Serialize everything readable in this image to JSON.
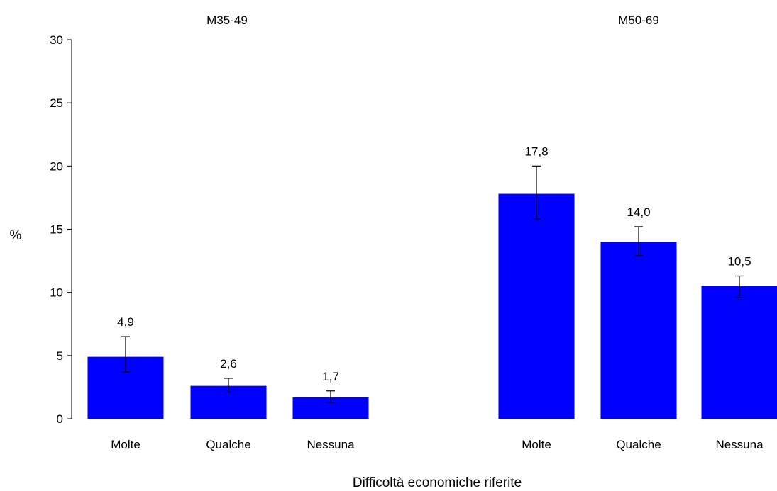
{
  "chart_data": {
    "type": "bar",
    "ylabel": "%",
    "xlabel": "Difficoltà economiche riferite",
    "ylim": [
      0,
      30
    ],
    "yticks": [
      "0",
      "5",
      "10",
      "15",
      "20",
      "25",
      "30"
    ],
    "ytick_values": [
      0,
      5,
      10,
      15,
      20,
      25,
      30
    ],
    "bar_color": "#0000ff",
    "grid": false,
    "groups": [
      {
        "name": "M35-49",
        "categories": [
          "Molte",
          "Qualche",
          "Nessuna"
        ],
        "values": [
          4.9,
          2.6,
          1.7
        ],
        "value_labels": [
          "4,9",
          "2,6",
          "1,7"
        ],
        "error_low": [
          3.7,
          2.1,
          1.3
        ],
        "error_high": [
          6.5,
          3.2,
          2.2
        ]
      },
      {
        "name": "M50-69",
        "categories": [
          "Molte",
          "Qualche",
          "Nessuna"
        ],
        "values": [
          17.8,
          14.0,
          10.5
        ],
        "value_labels": [
          "17,8",
          "14,0",
          "10,5"
        ],
        "error_low": [
          15.8,
          12.9,
          9.6
        ],
        "error_high": [
          20.0,
          15.2,
          11.3
        ]
      }
    ]
  }
}
